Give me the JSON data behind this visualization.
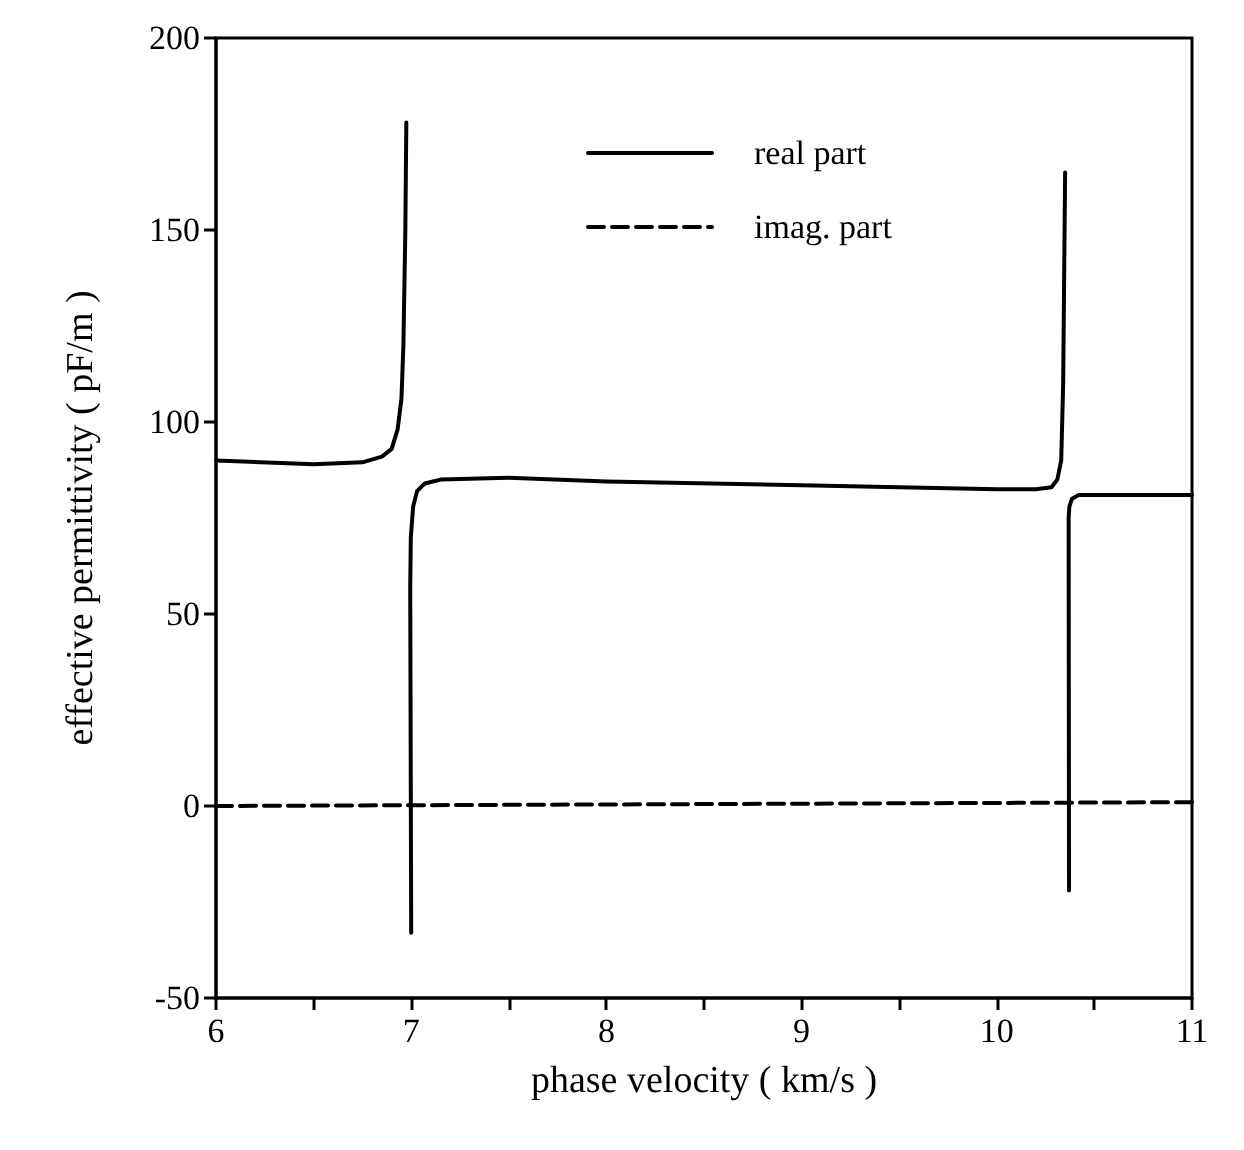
{
  "chart_data": {
    "type": "line",
    "xlabel": "phase velocity ( km/s )",
    "ylabel": "effective permittivity ( pF/m )",
    "xlim": [
      6,
      11
    ],
    "ylim": [
      -50,
      200
    ],
    "xticks": [
      6,
      {
        "value": 6.5,
        "label": null
      },
      7,
      {
        "value": 7.5,
        "label": null
      },
      8,
      {
        "value": 8.5,
        "label": null
      },
      9,
      {
        "value": 9.5,
        "label": null
      },
      10,
      {
        "value": 10.5,
        "label": null
      },
      11
    ],
    "yticks": [
      -50,
      0,
      50,
      100,
      150,
      200
    ],
    "grid": false,
    "legend": "top right",
    "series": [
      {
        "name": "real part",
        "color": "#000000",
        "line_style": "solid",
        "x": [
          6,
          6.5,
          6.75,
          6.85,
          6.9,
          6.93,
          6.95,
          6.96,
          6.97,
          6.975,
          6.98,
          7.0,
          6.995,
          6.998,
          7.01,
          7.03,
          7.07,
          7.15,
          7.5,
          8,
          9,
          10,
          10.2,
          10.28,
          10.31,
          10.33,
          10.34,
          10.35,
          10.355,
          10.36,
          10.37,
          10.368,
          10.372,
          10.385,
          10.42,
          10.5,
          11
        ],
        "values": [
          90,
          89,
          89.5,
          91,
          93,
          98,
          106,
          120,
          150,
          178,
          null,
          -33,
          57,
          70,
          78,
          82,
          84,
          85,
          85.5,
          84.5,
          83.5,
          82.5,
          82.5,
          83,
          85,
          90,
          110,
          165,
          null,
          null,
          -22,
          75,
          78,
          80,
          81,
          81,
          81
        ]
      },
      {
        "name": "imag. part",
        "color": "#000000",
        "line_style": "dashed",
        "x": [
          6,
          11
        ],
        "values": [
          0,
          1
        ]
      }
    ]
  }
}
